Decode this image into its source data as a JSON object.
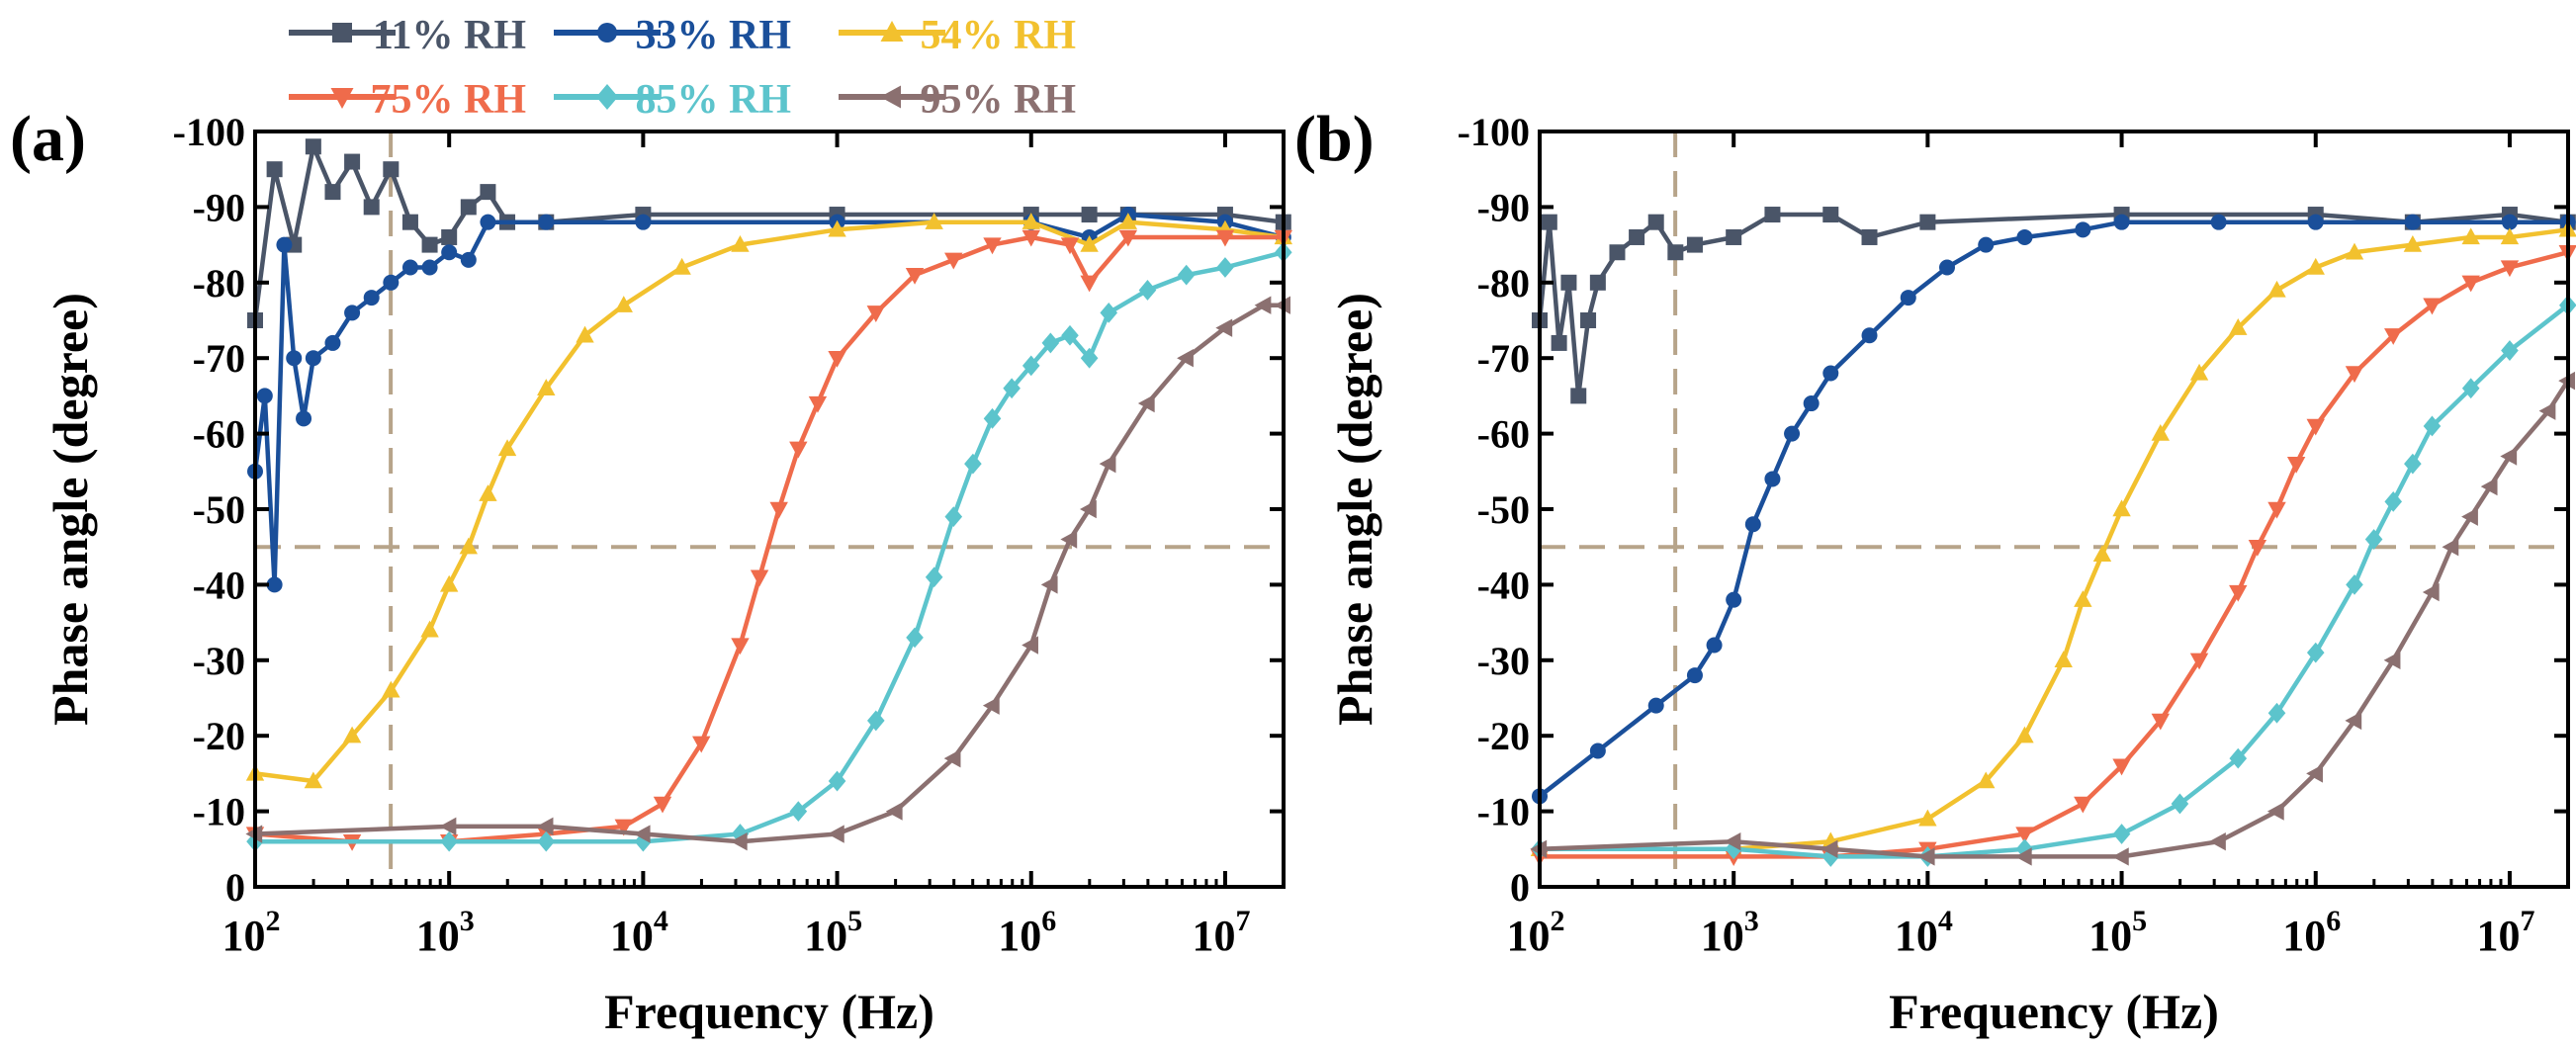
{
  "legend": {
    "items": [
      {
        "label": "11% RH",
        "color": "#4a5568",
        "marker": "square"
      },
      {
        "label": "33% RH",
        "color": "#1a4f9a",
        "marker": "circle"
      },
      {
        "label": "54% RH",
        "color": "#f2c12e",
        "marker": "triangle-up"
      },
      {
        "label": "75% RH",
        "color": "#ef6b4b",
        "marker": "triangle-down"
      },
      {
        "label": "85% RH",
        "color": "#5cc4cc",
        "marker": "diamond"
      },
      {
        "label": "95% RH",
        "color": "#8b7070",
        "marker": "triangle-left"
      }
    ]
  },
  "chart_data": [
    {
      "type": "line",
      "panel_label": "(a)",
      "title": "",
      "xlabel": "Frequency (Hz)",
      "ylabel": "Phase angle (degree)",
      "xscale": "log",
      "xlim": [
        100,
        20000000
      ],
      "ylim": [
        0,
        -100
      ],
      "x_ticks": [
        2,
        3,
        4,
        5,
        6,
        7
      ],
      "x_tick_base": "10",
      "y_ticks": [
        0,
        -10,
        -20,
        -30,
        -40,
        -50,
        -60,
        -70,
        -80,
        -90,
        -100
      ],
      "y_tick_labels": [
        "0",
        "-10",
        "-20",
        "-30",
        "-40",
        "-50",
        "-60",
        "-70",
        "-80",
        "-90",
        "-100"
      ],
      "reference_lines": {
        "y": -45,
        "x": 500,
        "style": "dashed"
      },
      "series": [
        {
          "name": "11% RH",
          "log_x": [
            2.0,
            2.1,
            2.2,
            2.3,
            2.4,
            2.5,
            2.6,
            2.7,
            2.8,
            2.9,
            3.0,
            3.1,
            3.2,
            3.3,
            3.5,
            4.0,
            5.0,
            6.0,
            6.3,
            6.5,
            7.0,
            7.3
          ],
          "y": [
            -75,
            -95,
            -85,
            -98,
            -92,
            -96,
            -90,
            -95,
            -88,
            -85,
            -86,
            -90,
            -92,
            -88,
            -88,
            -89,
            -89,
            -89,
            -89,
            -89,
            -89,
            -88
          ]
        },
        {
          "name": "33% RH",
          "log_x": [
            2.0,
            2.05,
            2.1,
            2.15,
            2.2,
            2.25,
            2.3,
            2.4,
            2.5,
            2.6,
            2.7,
            2.8,
            2.9,
            3.0,
            3.1,
            3.2,
            3.5,
            4.0,
            5.0,
            6.0,
            6.3,
            6.5,
            7.0,
            7.3
          ],
          "y": [
            -55,
            -65,
            -40,
            -85,
            -70,
            -62,
            -70,
            -72,
            -76,
            -78,
            -80,
            -82,
            -82,
            -84,
            -83,
            -88,
            -88,
            -88,
            -88,
            -88,
            -86,
            -89,
            -88,
            -86
          ]
        },
        {
          "name": "54% RH",
          "log_x": [
            2.0,
            2.3,
            2.5,
            2.7,
            2.9,
            3.0,
            3.1,
            3.2,
            3.3,
            3.5,
            3.7,
            3.9,
            4.2,
            4.5,
            5.0,
            5.5,
            6.0,
            6.3,
            6.5,
            7.0,
            7.3
          ],
          "y": [
            -15,
            -14,
            -20,
            -26,
            -34,
            -40,
            -45,
            -52,
            -58,
            -66,
            -73,
            -77,
            -82,
            -85,
            -87,
            -88,
            -88,
            -85,
            -88,
            -87,
            -86
          ]
        },
        {
          "name": "75% RH",
          "log_x": [
            2.0,
            2.5,
            3.0,
            3.5,
            3.9,
            4.1,
            4.3,
            4.5,
            4.6,
            4.7,
            4.8,
            4.9,
            5.0,
            5.2,
            5.4,
            5.6,
            5.8,
            6.0,
            6.2,
            6.3,
            6.5,
            7.0,
            7.3
          ],
          "y": [
            -7,
            -6,
            -6,
            -7,
            -8,
            -11,
            -19,
            -32,
            -41,
            -50,
            -58,
            -64,
            -70,
            -76,
            -81,
            -83,
            -85,
            -86,
            -85,
            -80,
            -86,
            -86,
            -86
          ]
        },
        {
          "name": "85% RH",
          "log_x": [
            2.0,
            3.0,
            3.5,
            4.0,
            4.5,
            4.8,
            5.0,
            5.2,
            5.4,
            5.5,
            5.6,
            5.7,
            5.8,
            5.9,
            6.0,
            6.1,
            6.2,
            6.3,
            6.4,
            6.6,
            6.8,
            7.0,
            7.3
          ],
          "y": [
            -6,
            -6,
            -6,
            -6,
            -7,
            -10,
            -14,
            -22,
            -33,
            -41,
            -49,
            -56,
            -62,
            -66,
            -69,
            -72,
            -73,
            -70,
            -76,
            -79,
            -81,
            -82,
            -84
          ]
        },
        {
          "name": "95% RH",
          "log_x": [
            2.0,
            3.0,
            3.5,
            4.0,
            4.5,
            5.0,
            5.3,
            5.6,
            5.8,
            6.0,
            6.1,
            6.2,
            6.3,
            6.4,
            6.6,
            6.8,
            7.0,
            7.2,
            7.3
          ],
          "y": [
            -7,
            -8,
            -8,
            -7,
            -6,
            -7,
            -10,
            -17,
            -24,
            -32,
            -40,
            -46,
            -50,
            -56,
            -64,
            -70,
            -74,
            -77,
            -77
          ]
        }
      ]
    },
    {
      "type": "line",
      "panel_label": "(b)",
      "title": "",
      "xlabel": "Frequency (Hz)",
      "ylabel": "Phase angle (degree)",
      "xscale": "log",
      "xlim": [
        100,
        20000000
      ],
      "ylim": [
        0,
        -100
      ],
      "x_ticks": [
        2,
        3,
        4,
        5,
        6,
        7
      ],
      "x_tick_base": "10",
      "y_ticks": [
        0,
        -10,
        -20,
        -30,
        -40,
        -50,
        -60,
        -70,
        -80,
        -90,
        -100
      ],
      "y_tick_labels": [
        "0",
        "-10",
        "-20",
        "-30",
        "-40",
        "-50",
        "-60",
        "-70",
        "-80",
        "-90",
        "-100"
      ],
      "reference_lines": {
        "y": -45,
        "x": 500,
        "style": "dashed"
      },
      "series": [
        {
          "name": "11% RH",
          "log_x": [
            2.0,
            2.05,
            2.1,
            2.15,
            2.2,
            2.25,
            2.3,
            2.4,
            2.5,
            2.6,
            2.7,
            2.8,
            3.0,
            3.2,
            3.5,
            3.7,
            4.0,
            5.0,
            6.0,
            6.5,
            7.0,
            7.3
          ],
          "y": [
            -75,
            -88,
            -72,
            -80,
            -65,
            -75,
            -80,
            -84,
            -86,
            -88,
            -84,
            -85,
            -86,
            -89,
            -89,
            -86,
            -88,
            -89,
            -89,
            -88,
            -89,
            -88
          ]
        },
        {
          "name": "33% RH",
          "log_x": [
            2.0,
            2.3,
            2.6,
            2.8,
            2.9,
            3.0,
            3.1,
            3.2,
            3.3,
            3.4,
            3.5,
            3.7,
            3.9,
            4.1,
            4.3,
            4.5,
            4.8,
            5.0,
            5.5,
            6.0,
            6.5,
            7.0,
            7.3
          ],
          "y": [
            -12,
            -18,
            -24,
            -28,
            -32,
            -38,
            -48,
            -54,
            -60,
            -64,
            -68,
            -73,
            -78,
            -82,
            -85,
            -86,
            -87,
            -88,
            -88,
            -88,
            -88,
            -88,
            -88
          ]
        },
        {
          "name": "54% RH",
          "log_x": [
            2.0,
            3.0,
            3.5,
            4.0,
            4.3,
            4.5,
            4.7,
            4.8,
            4.9,
            5.0,
            5.2,
            5.4,
            5.6,
            5.8,
            6.0,
            6.2,
            6.5,
            6.8,
            7.0,
            7.3
          ],
          "y": [
            -5,
            -5,
            -6,
            -9,
            -14,
            -20,
            -30,
            -38,
            -44,
            -50,
            -60,
            -68,
            -74,
            -79,
            -82,
            -84,
            -85,
            -86,
            -86,
            -87
          ]
        },
        {
          "name": "75% RH",
          "log_x": [
            2.0,
            3.0,
            3.5,
            4.0,
            4.5,
            4.8,
            5.0,
            5.2,
            5.4,
            5.6,
            5.7,
            5.8,
            5.9,
            6.0,
            6.2,
            6.4,
            6.6,
            6.8,
            7.0,
            7.3
          ],
          "y": [
            -4,
            -4,
            -4,
            -5,
            -7,
            -11,
            -16,
            -22,
            -30,
            -39,
            -45,
            -50,
            -56,
            -61,
            -68,
            -73,
            -77,
            -80,
            -82,
            -84
          ]
        },
        {
          "name": "85% RH",
          "log_x": [
            2.0,
            3.0,
            3.5,
            4.0,
            4.5,
            5.0,
            5.3,
            5.6,
            5.8,
            6.0,
            6.2,
            6.3,
            6.4,
            6.5,
            6.6,
            6.8,
            7.0,
            7.3
          ],
          "y": [
            -5,
            -5,
            -4,
            -4,
            -5,
            -7,
            -11,
            -17,
            -23,
            -31,
            -40,
            -46,
            -51,
            -56,
            -61,
            -66,
            -71,
            -77
          ]
        },
        {
          "name": "95% RH",
          "log_x": [
            2.0,
            3.0,
            3.5,
            4.0,
            4.5,
            5.0,
            5.5,
            5.8,
            6.0,
            6.2,
            6.4,
            6.6,
            6.7,
            6.8,
            6.9,
            7.0,
            7.2,
            7.3
          ],
          "y": [
            -5,
            -6,
            -5,
            -4,
            -4,
            -4,
            -6,
            -10,
            -15,
            -22,
            -30,
            -39,
            -45,
            -49,
            -53,
            -57,
            -63,
            -67
          ]
        }
      ]
    }
  ]
}
